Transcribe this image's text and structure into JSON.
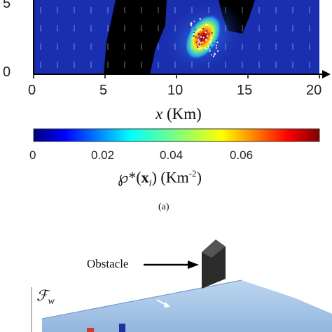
{
  "chart_data": {
    "type": "heatmap",
    "x_ticks": [
      "0",
      "5",
      "10",
      "15",
      "20"
    ],
    "y_ticks": [
      "0",
      "5"
    ],
    "xlim": [
      0,
      20
    ],
    "ylim_visible": [
      0,
      6.5
    ],
    "xlabel_var": "x",
    "xlabel_unit": "(Km)",
    "colorbar": {
      "colormap": "jet",
      "range": [
        0,
        0.08
      ],
      "ticks": [
        "0",
        "0.02",
        "0.04",
        "0.06"
      ],
      "tick_values": [
        0,
        0.02,
        0.04,
        0.06
      ],
      "label_symbol": "℘*",
      "label_arg_bold": "x",
      "label_arg_sub": "i",
      "label_unit": "(Km",
      "label_unit_exp": "-2",
      "label_close": ")"
    },
    "peak": {
      "x": 11.8,
      "y": 3.0,
      "value": 0.078
    },
    "obstacles": "black regions",
    "caption": "(a)"
  },
  "panel_b": {
    "obstacle_label": "Obstacle",
    "force_label": "ℱ",
    "force_sub": "w"
  },
  "colors": {
    "field_background": "#1a2fb0",
    "obstacle": "#000000",
    "panel_b_surface": "#a9c6e6",
    "panel_b_block": "#2b2b2b"
  }
}
